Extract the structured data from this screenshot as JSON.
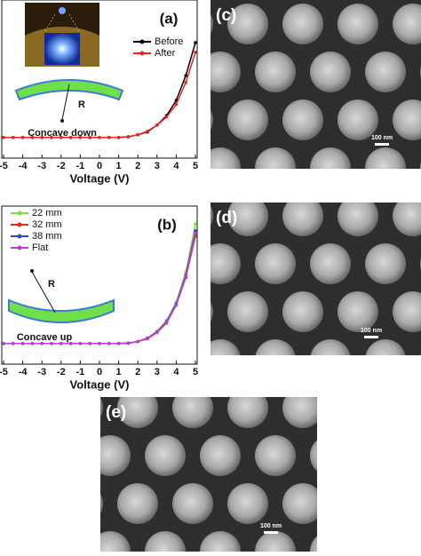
{
  "chart_data": [
    {
      "type": "line",
      "panel": "(a)",
      "inset_label": "Concave down",
      "radius_label": "R",
      "x_label": "Voltage (V)",
      "x": [
        -5,
        -4.5,
        -4,
        -3.5,
        -3,
        -2.5,
        -2,
        -1.5,
        -1,
        -0.5,
        0,
        0.5,
        1,
        1.5,
        2,
        2.5,
        3,
        3.5,
        4,
        4.5,
        5
      ],
      "xlim": [
        -5,
        5
      ],
      "xticks": [
        -5,
        -4,
        -3,
        -2,
        -1,
        0,
        1,
        2,
        3,
        4,
        5
      ],
      "ylim": [
        -0.15,
        1
      ],
      "legend": "upper right",
      "series": [
        {
          "name": "Before",
          "color": "#000000",
          "values": [
            0,
            0,
            0,
            0,
            0,
            0,
            0,
            0,
            0,
            0,
            0,
            0,
            0,
            0.005,
            0.02,
            0.04,
            0.09,
            0.16,
            0.27,
            0.45,
            0.69
          ]
        },
        {
          "name": "After",
          "color": "#e8251f",
          "values": [
            0,
            0,
            0,
            0,
            0,
            0,
            0,
            0,
            0,
            0,
            0,
            0,
            0,
            0.005,
            0.02,
            0.045,
            0.09,
            0.15,
            0.24,
            0.4,
            0.62
          ]
        }
      ]
    },
    {
      "type": "line",
      "panel": "(b)",
      "inset_label": "Concave up",
      "radius_label": "R",
      "x_label": "Voltage (V)",
      "x": [
        -5,
        -4.5,
        -4,
        -3.5,
        -3,
        -2.5,
        -2,
        -1.5,
        -1,
        -0.5,
        0,
        0.5,
        1,
        1.5,
        2,
        2.5,
        3,
        3.5,
        4,
        4.5,
        5
      ],
      "xlim": [
        -5,
        5
      ],
      "xticks": [
        -5,
        -4,
        -3,
        -2,
        -1,
        0,
        1,
        2,
        3,
        4,
        5
      ],
      "ylim": [
        -0.15,
        1
      ],
      "legend": "upper left",
      "series": [
        {
          "name": "22 mm",
          "color": "#7ee03a",
          "values": [
            0,
            0,
            0,
            0,
            0,
            0,
            0,
            0,
            0,
            0,
            0,
            0,
            0,
            0.003,
            0.015,
            0.04,
            0.09,
            0.17,
            0.3,
            0.52,
            0.87
          ]
        },
        {
          "name": "32 mm",
          "color": "#e8251f",
          "values": [
            0,
            0,
            0,
            0,
            0,
            0,
            0,
            0,
            0,
            0,
            0,
            0,
            0,
            0.003,
            0.015,
            0.035,
            0.08,
            0.15,
            0.28,
            0.48,
            0.78
          ]
        },
        {
          "name": "38 mm",
          "color": "#2b4bd6",
          "values": [
            0,
            0,
            0,
            0,
            0,
            0,
            0,
            0,
            0,
            0,
            0,
            0,
            0,
            0.003,
            0.015,
            0.04,
            0.085,
            0.16,
            0.29,
            0.5,
            0.82
          ]
        },
        {
          "name": "Flat",
          "color": "#c03bd6",
          "values": [
            0,
            0,
            0,
            0,
            0,
            0,
            0,
            0,
            0,
            0,
            0,
            0,
            0,
            0.003,
            0.015,
            0.038,
            0.082,
            0.155,
            0.28,
            0.49,
            0.8
          ]
        }
      ]
    }
  ],
  "images": [
    {
      "label": "(c)",
      "scale_bar": "100 nm"
    },
    {
      "label": "(d)",
      "scale_bar": "100 nm"
    },
    {
      "label": "(e)",
      "scale_bar": "100 nm"
    }
  ]
}
